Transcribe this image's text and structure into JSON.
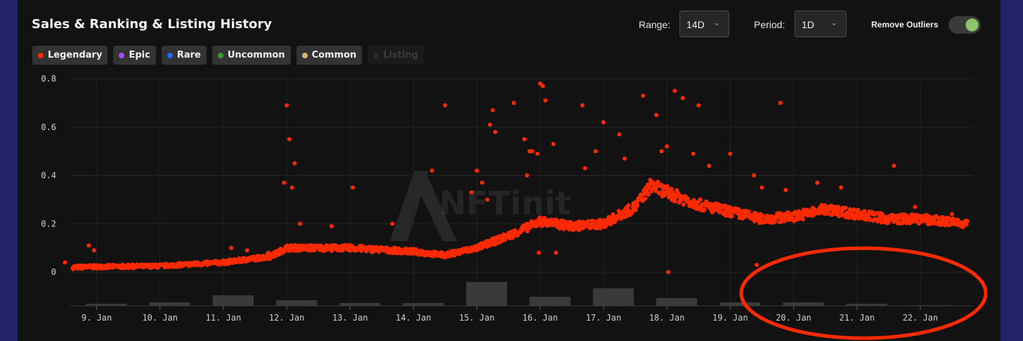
{
  "header": {
    "title": "Sales & Ranking & Listing History",
    "range_label": "Range:",
    "range_value": "14D",
    "period_label": "Period:",
    "period_value": "1D",
    "remove_outliers_label": "Remove Outliers",
    "remove_outliers_on": true
  },
  "legend": [
    {
      "label": "Legendary",
      "color": "#ff2a00",
      "active": true
    },
    {
      "label": "Epic",
      "color": "#a64dff",
      "active": true
    },
    {
      "label": "Rare",
      "color": "#1f6bff",
      "active": true
    },
    {
      "label": "Uncommon",
      "color": "#3a9a3a",
      "active": true
    },
    {
      "label": "Common",
      "color": "#d9b27a",
      "active": true
    },
    {
      "label": "Listing",
      "color": "#2a2a2a",
      "active": false
    }
  ],
  "watermark": "NFTinit",
  "chart_data": {
    "type": "scatter",
    "x_type": "date",
    "x_tick_labels": [
      "9. Jan",
      "10. Jan",
      "11. Jan",
      "12. Jan",
      "13. Jan",
      "14. Jan",
      "15. Jan",
      "16. Jan",
      "17. Jan",
      "18. Jan",
      "19. Jan",
      "20. Jan",
      "21. Jan",
      "22. Jan"
    ],
    "y_ticks": [
      0,
      0.2,
      0.4,
      0.6,
      0.8
    ],
    "y_tick_labels": [
      "0",
      "0.2",
      "0.4",
      "0.6",
      "0.8"
    ],
    "ylim": [
      0,
      0.8
    ],
    "xlim": [
      "2025-01-08 14:00",
      "2025-01-22 20:00"
    ],
    "grid": true,
    "series": [
      {
        "name": "Legendary",
        "color": "#ff2a00",
        "trend": [
          [
            "2025-01-08 15:00",
            0.02
          ],
          [
            "2025-01-09 00:00",
            0.022
          ],
          [
            "2025-01-10 00:00",
            0.025
          ],
          [
            "2025-01-11 00:00",
            0.04
          ],
          [
            "2025-01-11 18:00",
            0.065
          ],
          [
            "2025-01-12 00:00",
            0.1
          ],
          [
            "2025-01-13 00:00",
            0.1
          ],
          [
            "2025-01-14 00:00",
            0.085
          ],
          [
            "2025-01-14 12:00",
            0.07
          ],
          [
            "2025-01-15 00:00",
            0.1
          ],
          [
            "2025-01-15 12:00",
            0.15
          ],
          [
            "2025-01-16 00:00",
            0.21
          ],
          [
            "2025-01-16 12:00",
            0.19
          ],
          [
            "2025-01-17 00:00",
            0.2
          ],
          [
            "2025-01-17 12:00",
            0.27
          ],
          [
            "2025-01-17 18:00",
            0.36
          ],
          [
            "2025-01-18 00:00",
            0.33
          ],
          [
            "2025-01-18 12:00",
            0.28
          ],
          [
            "2025-01-19 00:00",
            0.25
          ],
          [
            "2025-01-19 12:00",
            0.22
          ],
          [
            "2025-01-20 00:00",
            0.23
          ],
          [
            "2025-01-20 12:00",
            0.26
          ],
          [
            "2025-01-21 00:00",
            0.24
          ],
          [
            "2025-01-21 12:00",
            0.22
          ],
          [
            "2025-01-22 00:00",
            0.22
          ],
          [
            "2025-01-22 18:00",
            0.2
          ]
        ],
        "outliers": [
          [
            "2025-01-08 21:00",
            0.11
          ],
          [
            "2025-01-08 23:00",
            0.09
          ],
          [
            "2025-01-08 12:00",
            0.04
          ],
          [
            "2025-01-11 03:00",
            0.1
          ],
          [
            "2025-01-11 09:00",
            0.09
          ],
          [
            "2025-01-11 17:00",
            0.08
          ],
          [
            "2025-01-12 00:00",
            0.69
          ],
          [
            "2025-01-12 01:00",
            0.55
          ],
          [
            "2025-01-12 03:00",
            0.45
          ],
          [
            "2025-01-11 23:00",
            0.37
          ],
          [
            "2025-01-12 02:00",
            0.35
          ],
          [
            "2025-01-12 05:00",
            0.2
          ],
          [
            "2025-01-13 01:00",
            0.35
          ],
          [
            "2025-01-12 17:00",
            0.19
          ],
          [
            "2025-01-13 16:00",
            0.2
          ],
          [
            "2025-01-14 07:00",
            0.42
          ],
          [
            "2025-01-14 12:00",
            0.69
          ],
          [
            "2025-01-14 22:00",
            0.33
          ],
          [
            "2025-01-15 00:00",
            0.42
          ],
          [
            "2025-01-15 02:00",
            0.37
          ],
          [
            "2025-01-15 05:00",
            0.61
          ],
          [
            "2025-01-15 06:00",
            0.67
          ],
          [
            "2025-01-15 07:00",
            0.58
          ],
          [
            "2025-01-15 04:00",
            0.3
          ],
          [
            "2025-01-15 14:00",
            0.7
          ],
          [
            "2025-01-15 18:00",
            0.55
          ],
          [
            "2025-01-15 20:00",
            0.5
          ],
          [
            "2025-01-15 21:00",
            0.5
          ],
          [
            "2025-01-15 19:00",
            0.4
          ],
          [
            "2025-01-16 00:00",
            0.78
          ],
          [
            "2025-01-16 01:00",
            0.77
          ],
          [
            "2025-01-16 02:00",
            0.71
          ],
          [
            "2025-01-15 23:00",
            0.49
          ],
          [
            "2025-01-16 05:00",
            0.53
          ],
          [
            "2025-01-15 23:30",
            0.08
          ],
          [
            "2025-01-16 06:00",
            0.08
          ],
          [
            "2025-01-16 16:00",
            0.69
          ],
          [
            "2025-01-17 00:00",
            0.62
          ],
          [
            "2025-01-16 21:00",
            0.5
          ],
          [
            "2025-01-16 17:00",
            0.43
          ],
          [
            "2025-01-17 06:00",
            0.57
          ],
          [
            "2025-01-17 08:00",
            0.47
          ],
          [
            "2025-01-17 15:00",
            0.73
          ],
          [
            "2025-01-17 20:00",
            0.65
          ],
          [
            "2025-01-17 22:00",
            0.5
          ],
          [
            "2025-01-18 03:00",
            0.75
          ],
          [
            "2025-01-18 06:00",
            0.72
          ],
          [
            "2025-01-18 00:00",
            0.52
          ],
          [
            "2025-01-18 10:00",
            0.49
          ],
          [
            "2025-01-18 12:00",
            0.69
          ],
          [
            "2025-01-18 00:30",
            0.0
          ],
          [
            "2025-01-18 16:00",
            0.44
          ],
          [
            "2025-01-19 00:00",
            0.49
          ],
          [
            "2025-01-19 09:00",
            0.4
          ],
          [
            "2025-01-19 12:00",
            0.35
          ],
          [
            "2025-01-19 10:00",
            0.03
          ],
          [
            "2025-01-19 19:00",
            0.7
          ],
          [
            "2025-01-19 21:00",
            0.34
          ],
          [
            "2025-01-20 09:00",
            0.37
          ],
          [
            "2025-01-20 18:00",
            0.35
          ],
          [
            "2025-01-21 14:00",
            0.44
          ],
          [
            "2025-01-21 22:00",
            0.27
          ],
          [
            "2025-01-22 12:00",
            0.24
          ]
        ]
      }
    ],
    "listing_volume": {
      "name": "Listing",
      "categories": [
        "9. Jan",
        "10. Jan",
        "11. Jan",
        "12. Jan",
        "13. Jan",
        "14. Jan",
        "15. Jan",
        "16. Jan",
        "17. Jan",
        "18. Jan",
        "19. Jan",
        "20. Jan",
        "21. Jan",
        "22. Jan"
      ],
      "values": [
        3,
        5,
        15,
        8,
        4,
        4,
        34,
        13,
        25,
        11,
        5,
        5,
        3,
        1
      ],
      "max": 40
    },
    "annotation": "red-ellipse"
  }
}
